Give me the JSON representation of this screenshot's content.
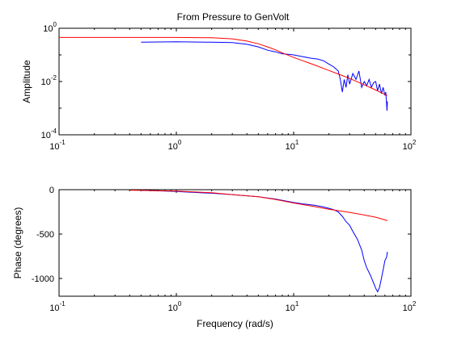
{
  "figure_title": "From Pressure to GenVolt",
  "chart_data": [
    {
      "type": "line",
      "name": "amplitude",
      "title": "From Pressure to GenVolt",
      "xlabel": "",
      "ylabel": "Amplitude",
      "xscale": "log",
      "yscale": "log",
      "xlim": [
        0.1,
        100
      ],
      "ylim": [
        0.0001,
        1
      ],
      "grid": false,
      "x_ticks": [
        {
          "base": "10",
          "exp": "-1",
          "value": 0.1
        },
        {
          "base": "10",
          "exp": "0",
          "value": 1
        },
        {
          "base": "10",
          "exp": "1",
          "value": 10
        },
        {
          "base": "10",
          "exp": "2",
          "value": 100
        }
      ],
      "y_ticks": [
        {
          "base": "10",
          "exp": "0",
          "value": 1
        },
        {
          "base": "10",
          "exp": "-2",
          "value": 0.01
        },
        {
          "base": "10",
          "exp": "-4",
          "value": 0.0001
        }
      ],
      "series": [
        {
          "color": "#0000ff",
          "x": [
            0.5,
            1,
            2,
            3,
            4,
            5,
            6,
            7,
            8,
            9,
            10,
            12,
            14,
            16,
            18,
            20,
            22,
            24,
            25,
            26,
            27,
            28,
            29,
            30,
            32,
            34,
            36,
            38,
            40,
            42,
            44,
            46,
            48,
            50,
            52,
            54,
            56,
            58,
            60,
            61,
            62,
            62.5,
            63
          ],
          "y": [
            0.3,
            0.31,
            0.3,
            0.29,
            0.25,
            0.2,
            0.15,
            0.13,
            0.11,
            0.105,
            0.1,
            0.085,
            0.075,
            0.07,
            0.06,
            0.045,
            0.035,
            0.025,
            0.012,
            0.004,
            0.012,
            0.006,
            0.018,
            0.008,
            0.02,
            0.012,
            0.025,
            0.006,
            0.01,
            0.007,
            0.012,
            0.006,
            0.009,
            0.01,
            0.0045,
            0.008,
            0.0035,
            0.006,
            0.003,
            0.004,
            0.0015,
            0.0008,
            0.0018
          ]
        },
        {
          "color": "#ff0000",
          "x": [
            0.1,
            0.5,
            1,
            2,
            3,
            4,
            5,
            6,
            7,
            8,
            10,
            12,
            15,
            20,
            25,
            30,
            40,
            50,
            60,
            63
          ],
          "y": [
            0.45,
            0.45,
            0.45,
            0.44,
            0.4,
            0.33,
            0.26,
            0.2,
            0.155,
            0.12,
            0.08,
            0.06,
            0.042,
            0.026,
            0.018,
            0.013,
            0.0075,
            0.0048,
            0.0033,
            0.003
          ]
        }
      ]
    },
    {
      "type": "line",
      "name": "phase",
      "title": "",
      "xlabel": "Frequency (rad/s)",
      "ylabel": "Phase (degrees)",
      "xscale": "log",
      "yscale": "linear",
      "xlim": [
        0.1,
        100
      ],
      "ylim": [
        -1200,
        0
      ],
      "grid": false,
      "x_ticks": [
        {
          "base": "10",
          "exp": "-1",
          "value": 0.1
        },
        {
          "base": "10",
          "exp": "0",
          "value": 1
        },
        {
          "base": "10",
          "exp": "1",
          "value": 10
        },
        {
          "base": "10",
          "exp": "2",
          "value": 100
        }
      ],
      "y_ticks": [
        {
          "label": "0",
          "value": 0
        },
        {
          "label": "-500",
          "value": -500
        },
        {
          "label": "-1000",
          "value": -1000
        }
      ],
      "series": [
        {
          "color": "#0000ff",
          "x": [
            0.5,
            1,
            2,
            3,
            5,
            7,
            10,
            12,
            15,
            18,
            20,
            22,
            24,
            26,
            28,
            30,
            32,
            35,
            38,
            40,
            42,
            45,
            48,
            50,
            52,
            54,
            56,
            58,
            60,
            62,
            63
          ],
          "y": [
            -5,
            -20,
            -40,
            -55,
            -80,
            -105,
            -145,
            -160,
            -175,
            -195,
            -210,
            -225,
            -250,
            -300,
            -360,
            -400,
            -470,
            -560,
            -680,
            -800,
            -880,
            -960,
            -1050,
            -1110,
            -1150,
            -1100,
            -1000,
            -900,
            -800,
            -760,
            -700
          ]
        },
        {
          "color": "#ff0000",
          "x": [
            0.4,
            1,
            2,
            3,
            5,
            7,
            10,
            15,
            20,
            25,
            30,
            40,
            50,
            60,
            63
          ],
          "y": [
            -5,
            -15,
            -35,
            -55,
            -80,
            -110,
            -150,
            -190,
            -220,
            -240,
            -255,
            -285,
            -310,
            -340,
            -350
          ]
        }
      ]
    }
  ]
}
